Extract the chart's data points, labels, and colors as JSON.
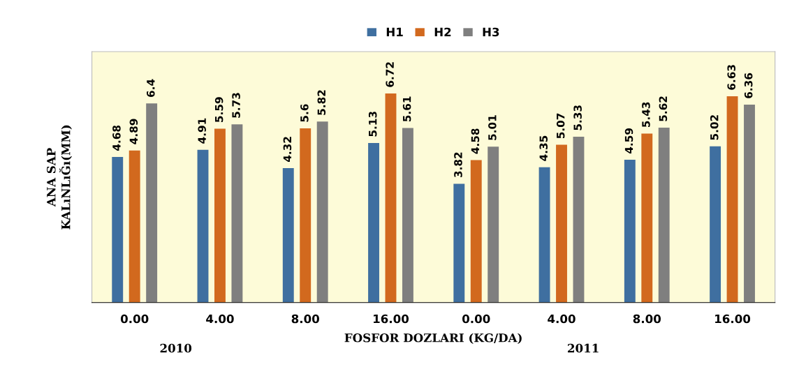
{
  "chart_data": {
    "type": "bar",
    "xlabel": "FOSFOR DOZLARI (KG/DA)",
    "ylabel": "ANA SAP\nKALıNLıĞı(MM)",
    "categories": [
      "0.00",
      "4.00",
      "8.00",
      "16.00",
      "0.00",
      "4.00",
      "8.00",
      "16.00"
    ],
    "series": [
      {
        "name": "H1",
        "color": "#3f6fa0",
        "values": [
          4.68,
          4.91,
          4.32,
          5.13,
          3.82,
          4.35,
          4.59,
          5.02
        ]
      },
      {
        "name": "H2",
        "color": "#d2691e",
        "values": [
          4.89,
          5.59,
          5.6,
          6.72,
          4.58,
          5.07,
          5.43,
          6.63
        ]
      },
      {
        "name": "H3",
        "color": "#7f7f7f",
        "values": [
          6.4,
          5.73,
          5.82,
          5.61,
          5.01,
          5.33,
          5.62,
          6.36
        ]
      }
    ],
    "data_labels": true,
    "legend": "top",
    "grid": false,
    "tick_labels": "x",
    "annotations": [
      "2010",
      "2011"
    ]
  }
}
